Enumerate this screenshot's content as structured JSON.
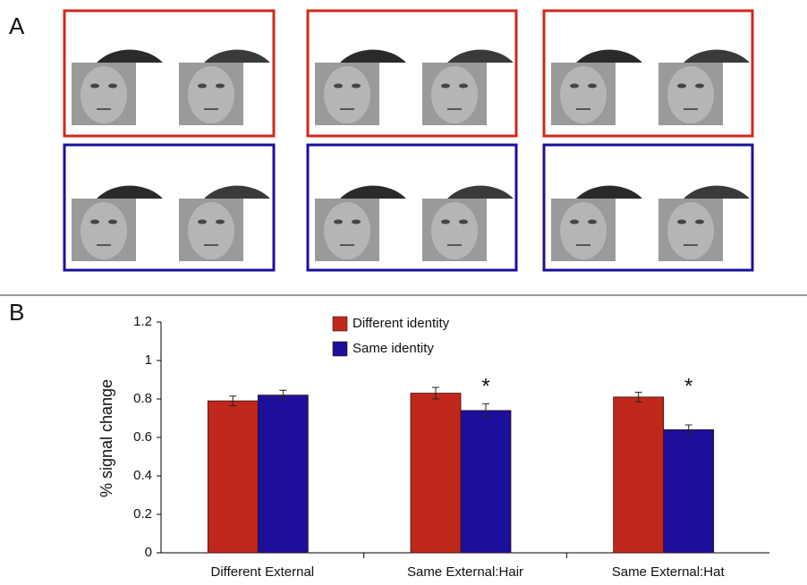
{
  "panel_labels": [
    "A",
    "B"
  ],
  "chart_data": {
    "type": "bar",
    "ylabel": "% signal change",
    "categories": [
      "Different External",
      "Same External:Hair",
      "Same External:Hat"
    ],
    "series": [
      {
        "name": "Different identity",
        "color": "#c0281c",
        "values": [
          0.79,
          0.83,
          0.81
        ],
        "errors": [
          0.025,
          0.03,
          0.025
        ]
      },
      {
        "name": "Same identity",
        "color": "#1c0f9c",
        "values": [
          0.82,
          0.74,
          0.64
        ],
        "errors": [
          0.025,
          0.035,
          0.025
        ]
      }
    ],
    "ylim": [
      0,
      1.2
    ],
    "yticks": [
      0,
      0.2,
      0.4,
      0.6,
      0.8,
      1,
      1.2
    ],
    "annotations": [
      "*",
      "*"
    ]
  }
}
